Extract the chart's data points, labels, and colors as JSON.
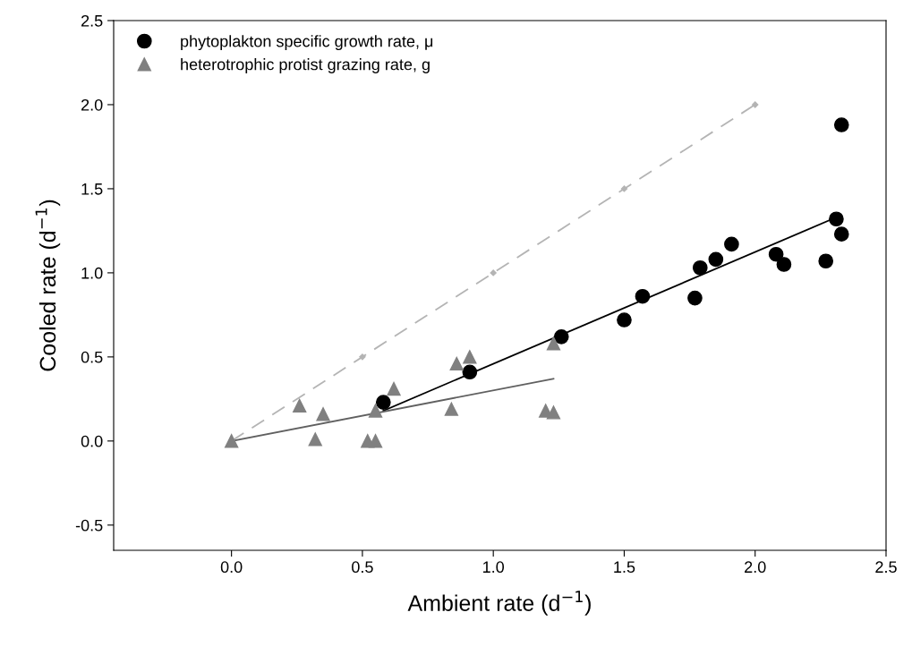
{
  "chart_data": {
    "type": "scatter",
    "xlabel": "Ambient rate (d$^{−1}$)",
    "ylabel": "Cooled rate (d$^{−1}$)",
    "xlim": [
      -0.45,
      2.5
    ],
    "ylim": [
      -0.65,
      2.5
    ],
    "xticks": [
      {
        "value": 0,
        "label": "0.0"
      },
      {
        "value": 0.5,
        "label": "0.5"
      },
      {
        "value": 1,
        "label": "1.0"
      },
      {
        "value": 1.5,
        "label": "1.5"
      },
      {
        "value": 2,
        "label": "2.0"
      },
      {
        "value": 2.5,
        "label": "2.5"
      }
    ],
    "yticks": [
      {
        "value": -0.5,
        "label": "-0.5"
      },
      {
        "value": 0,
        "label": "0.0"
      },
      {
        "value": 0.5,
        "label": "0.5"
      },
      {
        "value": 1,
        "label": "1.0"
      },
      {
        "value": 1.5,
        "label": "1.5"
      },
      {
        "value": 2,
        "label": "2.0"
      },
      {
        "value": 2.5,
        "label": "2.5"
      }
    ],
    "grid": false,
    "legend": "top left",
    "series": [
      {
        "name": "phytoplakton specific growth rate, μ",
        "marker": "circle",
        "color": "#000000",
        "x": [
          0.58,
          0.91,
          1.26,
          1.5,
          1.57,
          1.77,
          1.79,
          1.85,
          1.91,
          2.08,
          2.11,
          2.27,
          2.31,
          2.33,
          2.33
        ],
        "values": [
          0.23,
          0.41,
          0.62,
          0.72,
          0.86,
          0.85,
          1.03,
          1.08,
          1.17,
          1.11,
          1.05,
          1.07,
          1.32,
          1.23,
          1.88
        ]
      },
      {
        "name": "heterotrophic protist grazing rate, g",
        "marker": "triangle",
        "color": "#808080",
        "x": [
          0,
          0.26,
          0.32,
          0.35,
          0.52,
          0.55,
          0.55,
          0.62,
          0.84,
          0.86,
          0.91,
          1.2,
          1.23,
          1.23
        ],
        "values": [
          0,
          0.21,
          0.01,
          0.16,
          0,
          0,
          0.18,
          0.31,
          0.19,
          0.46,
          0.5,
          0.18,
          0.17,
          0.58
        ]
      },
      {
        "type": "line",
        "marker": "none",
        "line_style": "solid",
        "color": "#000000",
        "x": [
          0.58,
          2.31
        ],
        "values": [
          0.18,
          1.33
        ]
      },
      {
        "type": "line",
        "marker": "none",
        "line_style": "solid",
        "color": "#606060",
        "x": [
          0,
          1.23
        ],
        "values": [
          0,
          0.37
        ]
      },
      {
        "type": "line",
        "marker": "diamond",
        "line_style": "dashed",
        "color": "#b4b4b4",
        "x": [
          0,
          0.5,
          1,
          1.5,
          2
        ],
        "values": [
          0,
          0.5,
          1,
          1.5,
          2
        ]
      }
    ]
  }
}
